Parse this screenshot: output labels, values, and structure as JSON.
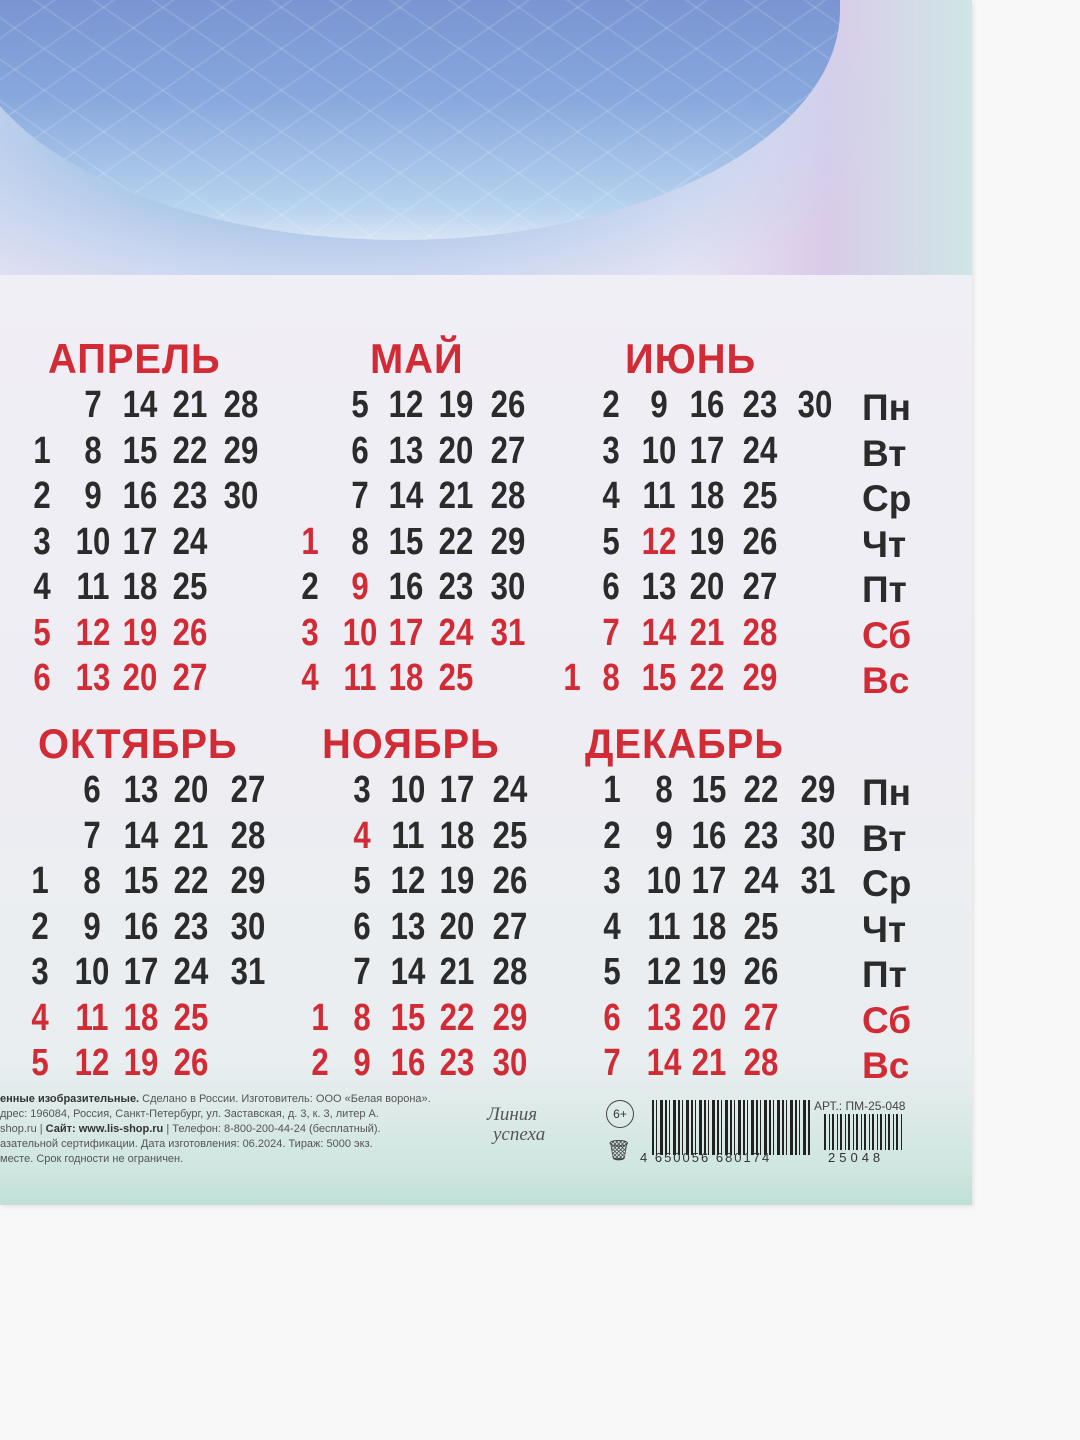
{
  "weekdays": [
    "Пн",
    "Вт",
    "Ср",
    "Чт",
    "Пт",
    "Сб",
    "Вс"
  ],
  "weekend_rows": [
    5,
    6
  ],
  "colors": {
    "red": "#d12b36",
    "black": "#2b2b2b"
  },
  "months": [
    {
      "name": "АПРЕЛЬ",
      "block": 0,
      "rows": [
        [
          "",
          "7",
          "14",
          "21",
          "28"
        ],
        [
          "1",
          "8",
          "15",
          "22",
          "29"
        ],
        [
          "2",
          "9",
          "16",
          "23",
          "30"
        ],
        [
          "3",
          "10",
          "17",
          "24",
          ""
        ],
        [
          "4",
          "11",
          "18",
          "25",
          ""
        ],
        [
          "5",
          "12",
          "19",
          "26",
          ""
        ],
        [
          "6",
          "13",
          "20",
          "27",
          ""
        ]
      ],
      "holidays": []
    },
    {
      "name": "МАЙ",
      "block": 0,
      "rows": [
        [
          "",
          "5",
          "12",
          "19",
          "26"
        ],
        [
          "",
          "6",
          "13",
          "20",
          "27"
        ],
        [
          "",
          "7",
          "14",
          "21",
          "28"
        ],
        [
          "1",
          "8",
          "15",
          "22",
          "29"
        ],
        [
          "2",
          "9",
          "16",
          "23",
          "30"
        ],
        [
          "3",
          "10",
          "17",
          "24",
          "31"
        ],
        [
          "4",
          "11",
          "18",
          "25",
          ""
        ]
      ],
      "holidays": [
        "1",
        "9"
      ]
    },
    {
      "name": "ИЮНЬ",
      "block": 0,
      "rows": [
        [
          "",
          "2",
          "9",
          "16",
          "23",
          "30"
        ],
        [
          "",
          "3",
          "10",
          "17",
          "24",
          ""
        ],
        [
          "",
          "4",
          "11",
          "18",
          "25",
          ""
        ],
        [
          "",
          "5",
          "12",
          "19",
          "26",
          ""
        ],
        [
          "",
          "6",
          "13",
          "20",
          "27",
          ""
        ],
        [
          "",
          "7",
          "14",
          "21",
          "28",
          ""
        ],
        [
          "1",
          "8",
          "15",
          "22",
          "29",
          ""
        ]
      ],
      "holidays": [
        "12"
      ]
    },
    {
      "name": "ОКТЯБРЬ",
      "block": 1,
      "rows": [
        [
          "",
          "6",
          "13",
          "20",
          "27"
        ],
        [
          "",
          "7",
          "14",
          "21",
          "28"
        ],
        [
          "1",
          "8",
          "15",
          "22",
          "29"
        ],
        [
          "2",
          "9",
          "16",
          "23",
          "30"
        ],
        [
          "3",
          "10",
          "17",
          "24",
          "31"
        ],
        [
          "4",
          "11",
          "18",
          "25",
          ""
        ],
        [
          "5",
          "12",
          "19",
          "26",
          ""
        ]
      ],
      "holidays": []
    },
    {
      "name": "НОЯБРЬ",
      "block": 1,
      "rows": [
        [
          "",
          "3",
          "10",
          "17",
          "24"
        ],
        [
          "",
          "4",
          "11",
          "18",
          "25"
        ],
        [
          "",
          "5",
          "12",
          "19",
          "26"
        ],
        [
          "",
          "6",
          "13",
          "20",
          "27"
        ],
        [
          "",
          "7",
          "14",
          "21",
          "28"
        ],
        [
          "1",
          "8",
          "15",
          "22",
          "29"
        ],
        [
          "2",
          "9",
          "16",
          "23",
          "30"
        ]
      ],
      "holidays": [
        "4"
      ]
    },
    {
      "name": "ДЕКАБРЬ",
      "block": 1,
      "rows": [
        [
          "1",
          "8",
          "15",
          "22",
          "29"
        ],
        [
          "2",
          "9",
          "16",
          "23",
          "30"
        ],
        [
          "3",
          "10",
          "17",
          "24",
          "31"
        ],
        [
          "4",
          "11",
          "18",
          "25",
          ""
        ],
        [
          "5",
          "12",
          "19",
          "26",
          ""
        ],
        [
          "6",
          "13",
          "20",
          "27",
          ""
        ],
        [
          "7",
          "14",
          "21",
          "28",
          ""
        ]
      ],
      "holidays": []
    }
  ],
  "footer": {
    "line1_bold": "енные изобразительные.",
    "line1": " Сделано в России. Изготовитель: ООО «Белая ворона».",
    "line2": "дрес: 196084, Россия, Санкт-Петербург, ул. Заставская, д. 3, к. 3, литер А.",
    "line3_pre": "shop.ru  |  ",
    "line3_bold": "Сайт: www.lis-shop.ru",
    "line3_post": "  |  Телефон: 8-800-200-44-24 (бесплатный).",
    "line4": "азательной сертификации. Дата изготовления: 06.2024. Тираж: 5000 экз.",
    "line5": " месте. Срок годности не ограничен."
  },
  "logo": {
    "line1": "Линия",
    "line2": "успеха"
  },
  "age_rating": "6+",
  "barcode_number": "4 650056 680174",
  "article": "АРТ.: ПМ-25-048",
  "article_barcode_number": "25048"
}
